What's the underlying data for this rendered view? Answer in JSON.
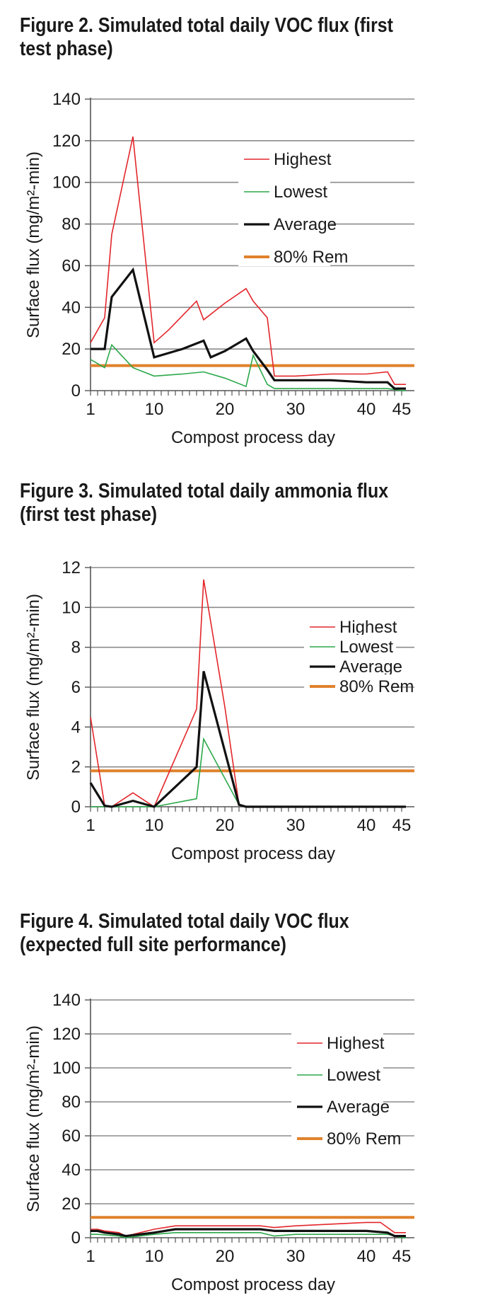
{
  "figures": [
    {
      "title": "Figure 2. Simulated total daily VOC flux (first test phase)",
      "chart_data": {
        "type": "line",
        "xlabel": "Compost process day",
        "ylabel": "Surface flux (mg/m²-min)",
        "xlim": [
          1,
          45
        ],
        "ylim": [
          0,
          140
        ],
        "xticks": [
          1,
          10,
          20,
          30,
          40,
          45
        ],
        "yticks": [
          0,
          20,
          40,
          60,
          80,
          100,
          120,
          140
        ],
        "grid": "horizontal",
        "legend": "upper-center",
        "series": [
          {
            "name": "Highest",
            "color": "#e3262b",
            "width": 1.6,
            "x": [
              1,
              3,
              4,
              7,
              10,
              12,
              14,
              16,
              17,
              20,
              23,
              24,
              26,
              27,
              30,
              35,
              40,
              43,
              44,
              46
            ],
            "y": [
              23,
              35,
              75,
              122,
              23,
              29,
              36,
              43,
              34,
              42,
              49,
              43,
              35,
              7,
              7,
              8,
              8,
              9,
              3,
              3
            ]
          },
          {
            "name": "Lowest",
            "color": "#2ba84a",
            "width": 1.6,
            "x": [
              1,
              3,
              4,
              7,
              10,
              14,
              17,
              20,
              23,
              24,
              26,
              27,
              35,
              43,
              45,
              46
            ],
            "y": [
              15,
              11,
              22,
              11,
              7,
              8,
              9,
              6,
              2,
              17,
              3,
              1,
              1,
              1,
              0,
              0
            ]
          },
          {
            "name": "Average",
            "color": "#111111",
            "width": 3.2,
            "x": [
              1,
              3,
              4,
              7,
              10,
              14,
              17,
              18,
              20,
              23,
              24,
              26,
              27,
              30,
              35,
              40,
              43,
              44,
              46
            ],
            "y": [
              20,
              20,
              45,
              58,
              16,
              20,
              24,
              16,
              19,
              25,
              19,
              10,
              5,
              5,
              5,
              4,
              4,
              1,
              1
            ]
          },
          {
            "name": "80% Rem",
            "color": "#e0822c",
            "width": 4,
            "x": [
              1,
              46
            ],
            "y": [
              12,
              12
            ]
          }
        ]
      }
    },
    {
      "title": "Figure 3. Simulated total daily ammonia flux (first test phase)",
      "chart_data": {
        "type": "line",
        "xlabel": "Compost process day",
        "ylabel": "Surface flux (mg/m²-min)",
        "xlim": [
          1,
          45
        ],
        "ylim": [
          0,
          12
        ],
        "xticks": [
          1,
          10,
          20,
          30,
          40,
          45
        ],
        "yticks": [
          0,
          2,
          4,
          6,
          8,
          10,
          12
        ],
        "grid": "horizontal",
        "legend": "right",
        "series": [
          {
            "name": "Highest",
            "color": "#e3262b",
            "width": 1.6,
            "x": [
              1,
              3,
              4,
              7,
              10,
              16,
              17,
              20,
              22,
              23,
              46
            ],
            "y": [
              4.5,
              0.05,
              0,
              0.7,
              0,
              4.9,
              11.4,
              5,
              0.1,
              0,
              0
            ]
          },
          {
            "name": "Lowest",
            "color": "#2ba84a",
            "width": 1.6,
            "x": [
              1,
              7,
              10,
              16,
              17,
              22,
              23,
              46
            ],
            "y": [
              0,
              0,
              0,
              0.4,
              3.4,
              0.1,
              0,
              0
            ]
          },
          {
            "name": "Average",
            "color": "#111111",
            "width": 3.2,
            "x": [
              1,
              3,
              4,
              7,
              10,
              16,
              17,
              22,
              23,
              46
            ],
            "y": [
              1.2,
              0.05,
              0,
              0.3,
              0,
              2,
              6.8,
              0.1,
              0,
              0
            ]
          },
          {
            "name": "80% Rem",
            "color": "#e0822c",
            "width": 4,
            "x": [
              1,
              46
            ],
            "y": [
              1.8,
              1.8
            ]
          }
        ]
      }
    },
    {
      "title": "Figure 4. Simulated total daily VOC flux (expected full site performance)",
      "chart_data": {
        "type": "line",
        "xlabel": "Compost process day",
        "ylabel": "Surface flux (mg/m²-min)",
        "xlim": [
          1,
          45
        ],
        "ylim": [
          0,
          140
        ],
        "xticks": [
          1,
          10,
          20,
          30,
          40,
          45
        ],
        "yticks": [
          0,
          20,
          40,
          60,
          80,
          100,
          120,
          140
        ],
        "grid": "horizontal",
        "legend": "right",
        "series": [
          {
            "name": "Highest",
            "color": "#e3262b",
            "width": 1.6,
            "x": [
              1,
              2,
              3,
              5,
              6,
              10,
              13,
              20,
              25,
              27,
              30,
              35,
              40,
              42,
              44,
              46
            ],
            "y": [
              5,
              5,
              4,
              3,
              1,
              5,
              7,
              7,
              7,
              6,
              7,
              8,
              9,
              9,
              3,
              3
            ]
          },
          {
            "name": "Lowest",
            "color": "#2ba84a",
            "width": 1.6,
            "x": [
              1,
              2,
              5,
              6,
              10,
              13,
              20,
              25,
              27,
              30,
              35,
              43,
              45,
              46
            ],
            "y": [
              2,
              2,
              1,
              0,
              2,
              3,
              3,
              3,
              1,
              2,
              2,
              2,
              0,
              0
            ]
          },
          {
            "name": "Average",
            "color": "#111111",
            "width": 3.2,
            "x": [
              1,
              2,
              3,
              5,
              6,
              10,
              13,
              20,
              25,
              27,
              30,
              35,
              40,
              43,
              44,
              46
            ],
            "y": [
              4,
              4,
              3,
              2,
              1,
              3,
              5,
              5,
              5,
              4,
              4,
              4,
              4,
              3,
              1,
              1
            ]
          },
          {
            "name": "80% Rem",
            "color": "#e0822c",
            "width": 4,
            "x": [
              1,
              46
            ],
            "y": [
              12,
              12
            ]
          }
        ]
      }
    }
  ]
}
